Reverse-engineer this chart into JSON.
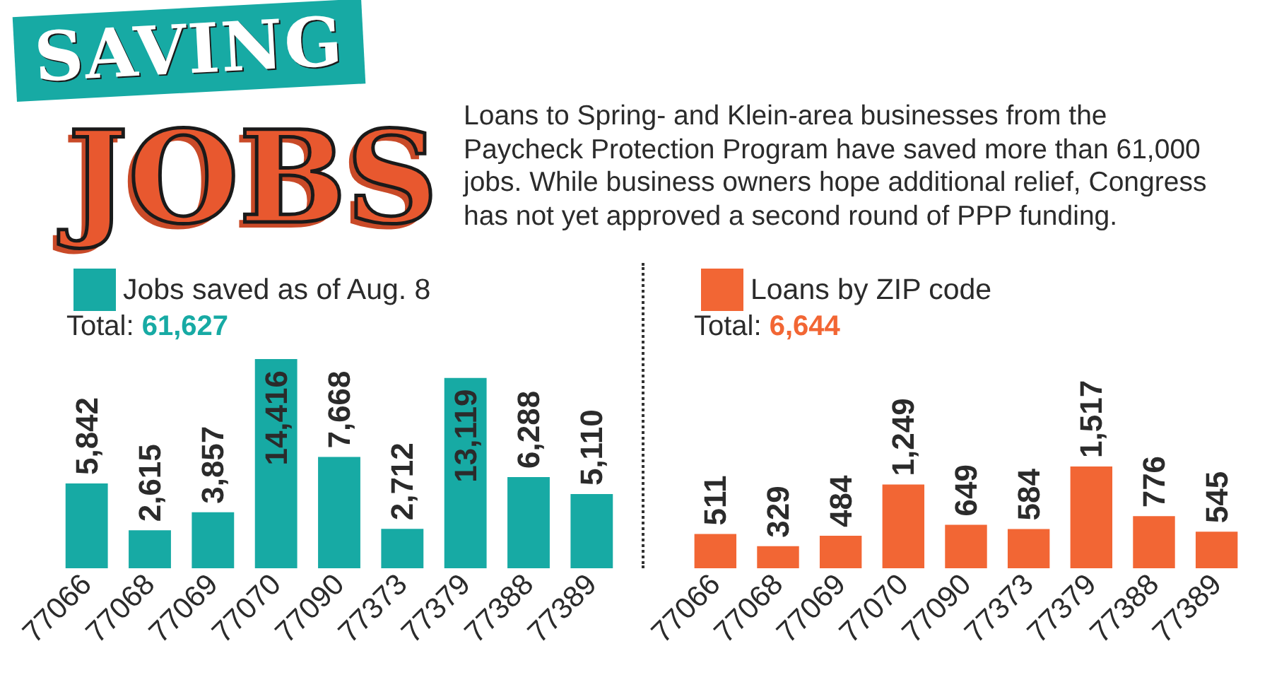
{
  "chart_data": [
    {
      "type": "bar",
      "title": "SAVING JOBS",
      "subtitle": "Loans to Spring- and Klein-area businesses from the\nPaycheck Protection Program have saved more than 61,000\njobs. While business owners hope additional relief, Congress\nhas not yet approved a second round of PPP funding.",
      "categories": [
        "77066",
        "77068",
        "77069",
        "77070",
        "77090",
        "77373",
        "77379",
        "77388",
        "77389"
      ],
      "series": [
        {
          "name": "Jobs saved as of Aug. 8",
          "color": "#17aaa4",
          "values": [
            5842,
            2615,
            3857,
            14416,
            7668,
            2712,
            13119,
            6288,
            5110
          ],
          "value_labels": [
            "5,842",
            "2,615",
            "3,857",
            "14,416",
            "7,668",
            "2,712",
            "13,119",
            "6,288",
            "5,110"
          ]
        }
      ],
      "legend": "top left",
      "annotations": [
        "Total: 61,627"
      ]
    },
    {
      "type": "bar",
      "categories": [
        "77066",
        "77068",
        "77069",
        "77070",
        "77090",
        "77373",
        "77379",
        "77388",
        "77389"
      ],
      "series": [
        {
          "name": "Loans by ZIP code",
          "color": "#f26634",
          "values": [
            511,
            329,
            484,
            1249,
            649,
            584,
            1517,
            776,
            545
          ],
          "value_labels": [
            "511",
            "329",
            "484",
            "1,249",
            "649",
            "584",
            "1,517",
            "776",
            "545"
          ]
        }
      ],
      "legend": "top left",
      "annotations": [
        "Total: 6,644"
      ]
    }
  ]
}
